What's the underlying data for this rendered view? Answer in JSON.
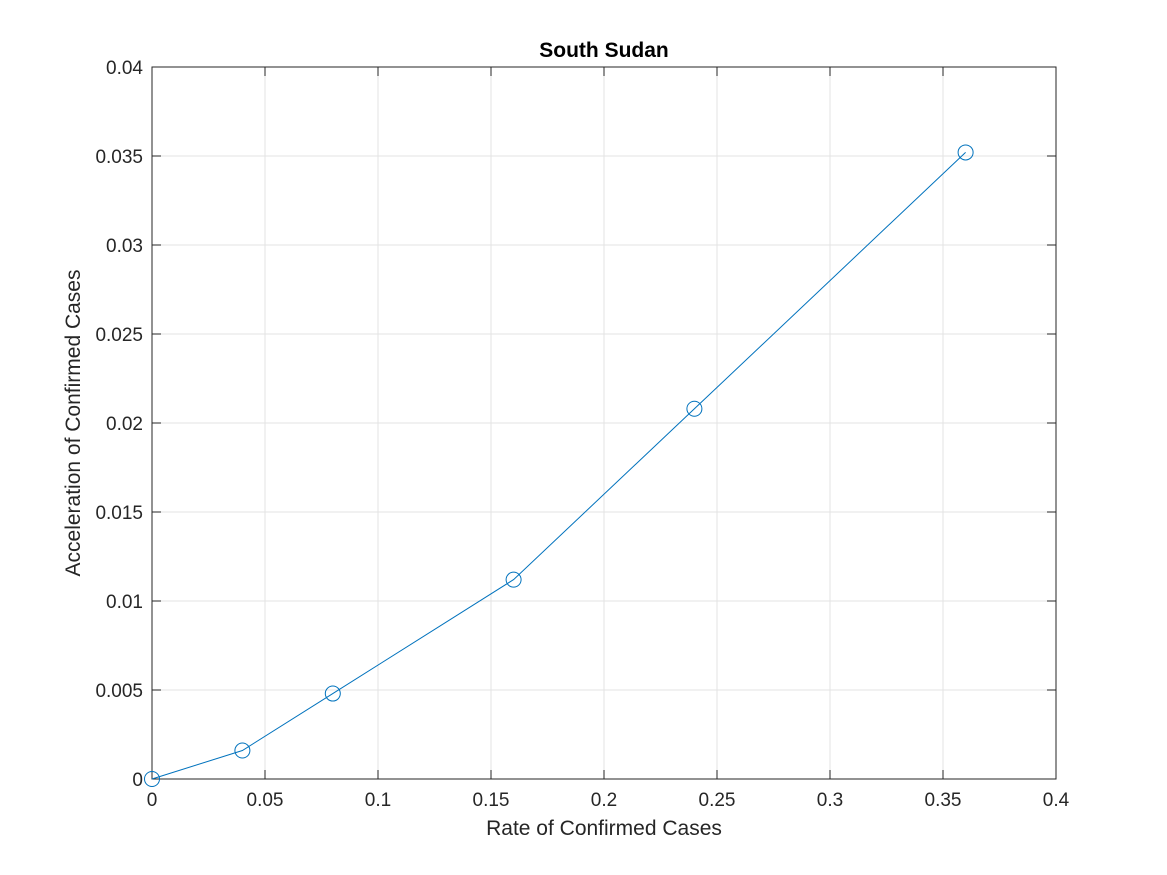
{
  "chart_data": {
    "type": "line",
    "title": "South Sudan",
    "xlabel": "Rate of Confirmed Cases",
    "ylabel": "Acceleration of Confirmed Cases",
    "xlim": [
      0,
      0.4
    ],
    "ylim": [
      0,
      0.04
    ],
    "x_ticks": [
      0,
      0.05,
      0.1,
      0.15,
      0.2,
      0.25,
      0.3,
      0.35,
      0.4
    ],
    "x_tick_labels": [
      "0",
      "0.05",
      "0.1",
      "0.15",
      "0.2",
      "0.25",
      "0.3",
      "0.35",
      "0.4"
    ],
    "y_ticks": [
      0,
      0.005,
      0.01,
      0.015,
      0.02,
      0.025,
      0.03,
      0.035,
      0.04
    ],
    "y_tick_labels": [
      "0",
      "0.005",
      "0.01",
      "0.015",
      "0.02",
      "0.025",
      "0.03",
      "0.035",
      "0.04"
    ],
    "grid": true,
    "series": [
      {
        "marker": "circle",
        "color": "#0072BD",
        "x": [
          0,
          0.04,
          0.08,
          0.16,
          0.24,
          0.36
        ],
        "y": [
          0,
          0.0016,
          0.0048,
          0.0112,
          0.0208,
          0.0352
        ]
      }
    ]
  }
}
